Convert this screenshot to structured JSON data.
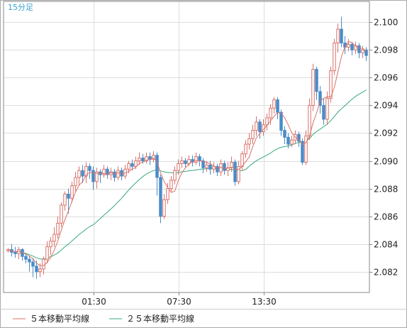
{
  "header": {
    "timeframe": "15分足"
  },
  "legend": [
    {
      "label": "５本移動平均線",
      "color": "#d9736a"
    },
    {
      "label": "２５本移動平均線",
      "color": "#3aa87a"
    }
  ],
  "colors": {
    "up": "#d9736a",
    "down": "#4a8cc8",
    "grid": "#dddddd",
    "frame": "#aaaaaa"
  },
  "chart_data": {
    "type": "candlestick",
    "ylim": [
      2.0805,
      2.1015
    ],
    "y_ticks": [
      "2.100",
      "2.098",
      "2.096",
      "2.094",
      "2.092",
      "2.090",
      "2.088",
      "2.086",
      "2.084",
      "2.082"
    ],
    "x_ticks": [
      {
        "label": "01:30",
        "index": 24
      },
      {
        "label": "07:30",
        "index": 48
      },
      {
        "label": "13:30",
        "index": 72
      }
    ],
    "x_count": 102,
    "candles": [
      [
        2.0835,
        2.0836,
        2.0834,
        2.0837
      ],
      [
        2.0836,
        2.0834,
        2.0831,
        2.084
      ],
      [
        2.0834,
        2.0833,
        2.083,
        2.0838
      ],
      [
        2.0833,
        2.0836,
        2.0829,
        2.0838
      ],
      [
        2.0836,
        2.0831,
        2.0828,
        2.0837
      ],
      [
        2.0831,
        2.0829,
        2.0826,
        2.0833
      ],
      [
        2.0829,
        2.0827,
        2.082,
        2.0831
      ],
      [
        2.0827,
        2.0824,
        2.0816,
        2.083
      ],
      [
        2.0824,
        2.082,
        2.0815,
        2.0828
      ],
      [
        2.082,
        2.0822,
        2.0816,
        2.0826
      ],
      [
        2.0822,
        2.0829,
        2.0818,
        2.0831
      ],
      [
        2.0829,
        2.0838,
        2.0826,
        2.0842
      ],
      [
        2.0838,
        2.0842,
        2.0832,
        2.0845
      ],
      [
        2.0842,
        2.0847,
        2.0838,
        2.0852
      ],
      [
        2.0847,
        2.0855,
        2.0844,
        2.086
      ],
      [
        2.0855,
        2.0868,
        2.0852,
        2.087
      ],
      [
        2.0868,
        2.0876,
        2.0864,
        2.0878
      ],
      [
        2.0876,
        2.0873,
        2.0862,
        2.088
      ],
      [
        2.0873,
        2.0882,
        2.087,
        2.0885
      ],
      [
        2.0882,
        2.0888,
        2.0878,
        2.0892
      ],
      [
        2.0888,
        2.0893,
        2.0882,
        2.0896
      ],
      [
        2.0893,
        2.0889,
        2.0884,
        2.0897
      ],
      [
        2.0889,
        2.0896,
        2.0884,
        2.0899
      ],
      [
        2.0896,
        2.0893,
        2.0887,
        2.0898
      ],
      [
        2.0893,
        2.0885,
        2.0879,
        2.0896
      ],
      [
        2.0885,
        2.0892,
        2.088,
        2.0895
      ],
      [
        2.0892,
        2.089,
        2.0884,
        2.0894
      ],
      [
        2.089,
        2.0894,
        2.0888,
        2.0897
      ],
      [
        2.0894,
        2.089,
        2.0887,
        2.0896
      ],
      [
        2.089,
        2.0892,
        2.0886,
        2.0895
      ],
      [
        2.0892,
        2.0888,
        2.0885,
        2.0894
      ],
      [
        2.0888,
        2.0893,
        2.0886,
        2.0896
      ],
      [
        2.0893,
        2.0889,
        2.0886,
        2.0895
      ],
      [
        2.0889,
        2.0894,
        2.0887,
        2.0897
      ],
      [
        2.0894,
        2.0898,
        2.0891,
        2.09
      ],
      [
        2.0898,
        2.0896,
        2.0893,
        2.0901
      ],
      [
        2.0896,
        2.09,
        2.0894,
        2.0903
      ],
      [
        2.09,
        2.0902,
        2.0897,
        2.0906
      ],
      [
        2.0902,
        2.09,
        2.0898,
        2.0905
      ],
      [
        2.09,
        2.0903,
        2.0898,
        2.0906
      ],
      [
        2.0903,
        2.0901,
        2.0897,
        2.0906
      ],
      [
        2.0901,
        2.0904,
        2.0899,
        2.0907
      ],
      [
        2.0904,
        2.0888,
        2.0875,
        2.0906
      ],
      [
        2.0888,
        2.086,
        2.0855,
        2.089
      ],
      [
        2.086,
        2.0872,
        2.0858,
        2.0876
      ],
      [
        2.0872,
        2.088,
        2.0869,
        2.0884
      ],
      [
        2.088,
        2.0886,
        2.0878,
        2.0889
      ],
      [
        2.0886,
        2.0893,
        2.0883,
        2.0896
      ],
      [
        2.0893,
        2.0898,
        2.089,
        2.0901
      ],
      [
        2.0898,
        2.09,
        2.0895,
        2.0903
      ],
      [
        2.09,
        2.0898,
        2.0895,
        2.0902
      ],
      [
        2.0898,
        2.0901,
        2.0896,
        2.0904
      ],
      [
        2.0901,
        2.0899,
        2.0896,
        2.0904
      ],
      [
        2.0899,
        2.0903,
        2.0897,
        2.0906
      ],
      [
        2.0903,
        2.09,
        2.0896,
        2.0905
      ],
      [
        2.09,
        2.0895,
        2.0891,
        2.0902
      ],
      [
        2.0895,
        2.0897,
        2.0892,
        2.09
      ],
      [
        2.0897,
        2.0894,
        2.089,
        2.09
      ],
      [
        2.0894,
        2.0896,
        2.0891,
        2.0899
      ],
      [
        2.0896,
        2.0892,
        2.0889,
        2.0898
      ],
      [
        2.0892,
        2.0898,
        2.0889,
        2.0901
      ],
      [
        2.0898,
        2.0893,
        2.089,
        2.09
      ],
      [
        2.0893,
        2.0895,
        2.0889,
        2.0899
      ],
      [
        2.0895,
        2.0899,
        2.0892,
        2.0903
      ],
      [
        2.0899,
        2.0885,
        2.0882,
        2.0901
      ],
      [
        2.0885,
        2.0896,
        2.0883,
        2.09
      ],
      [
        2.0896,
        2.0905,
        2.0893,
        2.0907
      ],
      [
        2.0905,
        2.0912,
        2.0902,
        2.0915
      ],
      [
        2.0912,
        2.0916,
        2.0908,
        2.092
      ],
      [
        2.0916,
        2.0922,
        2.0912,
        2.0926
      ],
      [
        2.0922,
        2.0928,
        2.0918,
        2.0932
      ],
      [
        2.0928,
        2.0921,
        2.0916,
        2.093
      ],
      [
        2.0921,
        2.0926,
        2.0918,
        2.093
      ],
      [
        2.0926,
        2.0931,
        2.0922,
        2.0934
      ],
      [
        2.0931,
        2.0938,
        2.0926,
        2.0941
      ],
      [
        2.0938,
        2.0944,
        2.0934,
        2.0946
      ],
      [
        2.0944,
        2.0935,
        2.093,
        2.0946
      ],
      [
        2.0935,
        2.0922,
        2.0918,
        2.0937
      ],
      [
        2.0922,
        2.0917,
        2.0912,
        2.0925
      ],
      [
        2.0917,
        2.0912,
        2.0909,
        2.092
      ],
      [
        2.0912,
        2.0915,
        2.091,
        2.0918
      ],
      [
        2.0915,
        2.0919,
        2.0912,
        2.0922
      ],
      [
        2.0919,
        2.0914,
        2.091,
        2.0921
      ],
      [
        2.0914,
        2.0899,
        2.0897,
        2.0916
      ],
      [
        2.0899,
        2.0918,
        2.0897,
        2.0922
      ],
      [
        2.0918,
        2.094,
        2.0915,
        2.0945
      ],
      [
        2.094,
        2.0966,
        2.0936,
        2.097
      ],
      [
        2.0966,
        2.095,
        2.0944,
        2.0968
      ],
      [
        2.095,
        2.094,
        2.0934,
        2.0954
      ],
      [
        2.094,
        2.093,
        2.0926,
        2.0945
      ],
      [
        2.093,
        2.0945,
        2.0926,
        2.095
      ],
      [
        2.0945,
        2.0965,
        2.0942,
        2.0968
      ],
      [
        2.0965,
        2.0985,
        2.0962,
        2.0988
      ],
      [
        2.0985,
        2.0995,
        2.0978,
        2.0999
      ],
      [
        2.0995,
        2.0985,
        2.0982,
        2.1004
      ],
      [
        2.0985,
        2.0982,
        2.0977,
        2.099
      ],
      [
        2.0982,
        2.0984,
        2.0979,
        2.0988
      ],
      [
        2.0984,
        2.098,
        2.0976,
        2.0986
      ],
      [
        2.098,
        2.0983,
        2.0977,
        2.0986
      ],
      [
        2.0983,
        2.0978,
        2.0974,
        2.0985
      ],
      [
        2.0978,
        2.098,
        2.0974,
        2.0983
      ],
      [
        2.098,
        2.0976,
        2.0972,
        2.0982
      ]
    ]
  }
}
